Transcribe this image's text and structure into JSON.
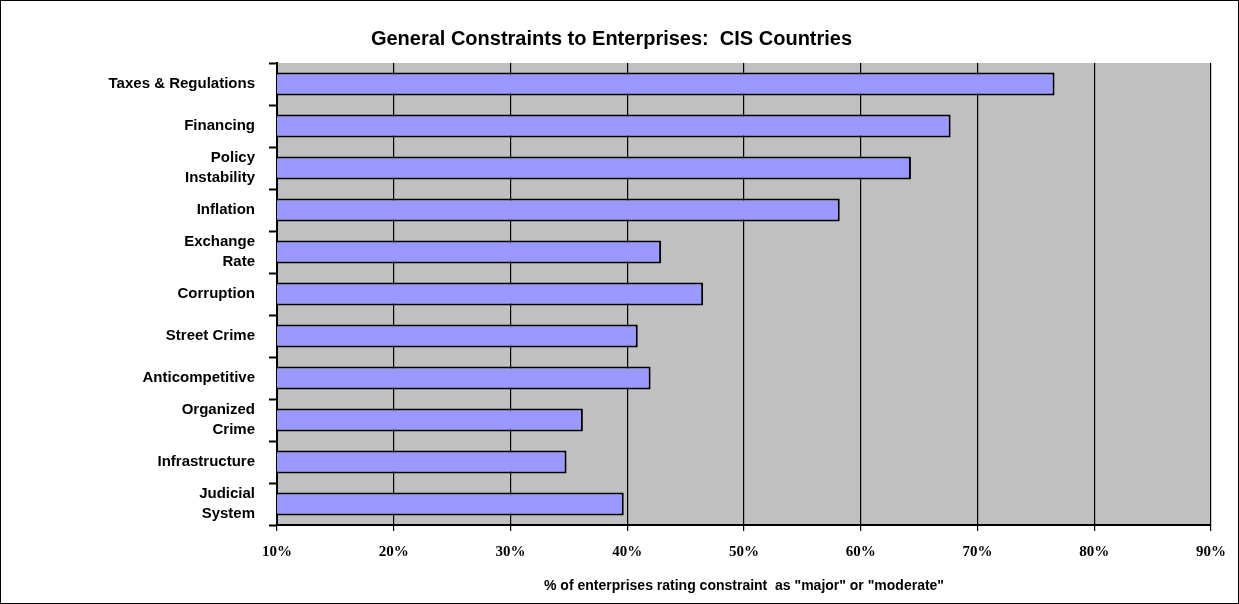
{
  "chart_data": {
    "type": "bar",
    "orientation": "horizontal",
    "title": "General Constraints to Enterprises:  CIS Countries",
    "xlabel": "% of enterprises rating constraint  as \"major\" or \"moderate\"",
    "categories": [
      "Taxes & Regulations",
      "Financing",
      "Policy\nInstability",
      "Inflation",
      "Exchange\nRate",
      "Corruption",
      "Street Crime",
      "Anticompetitive",
      "Organized\nCrime",
      "Infrastructure",
      "Judicial\nSystem"
    ],
    "values": [
      76.6,
      67.7,
      64.3,
      58.2,
      42.9,
      46.5,
      40.9,
      42.0,
      36.2,
      34.8,
      39.7
    ],
    "color": "#9999ff",
    "xlim": [
      10,
      90
    ],
    "xticks": [
      {
        "value": 10,
        "label": "10%"
      },
      {
        "value": 20,
        "label": "20%"
      },
      {
        "value": 30,
        "label": "30%"
      },
      {
        "value": 40,
        "label": "40%"
      },
      {
        "value": 50,
        "label": "50%"
      },
      {
        "value": 60,
        "label": "60%"
      },
      {
        "value": 70,
        "label": "70%"
      },
      {
        "value": 80,
        "label": "80%"
      },
      {
        "value": 90,
        "label": "90%"
      }
    ],
    "grid": "x",
    "legend": false
  }
}
